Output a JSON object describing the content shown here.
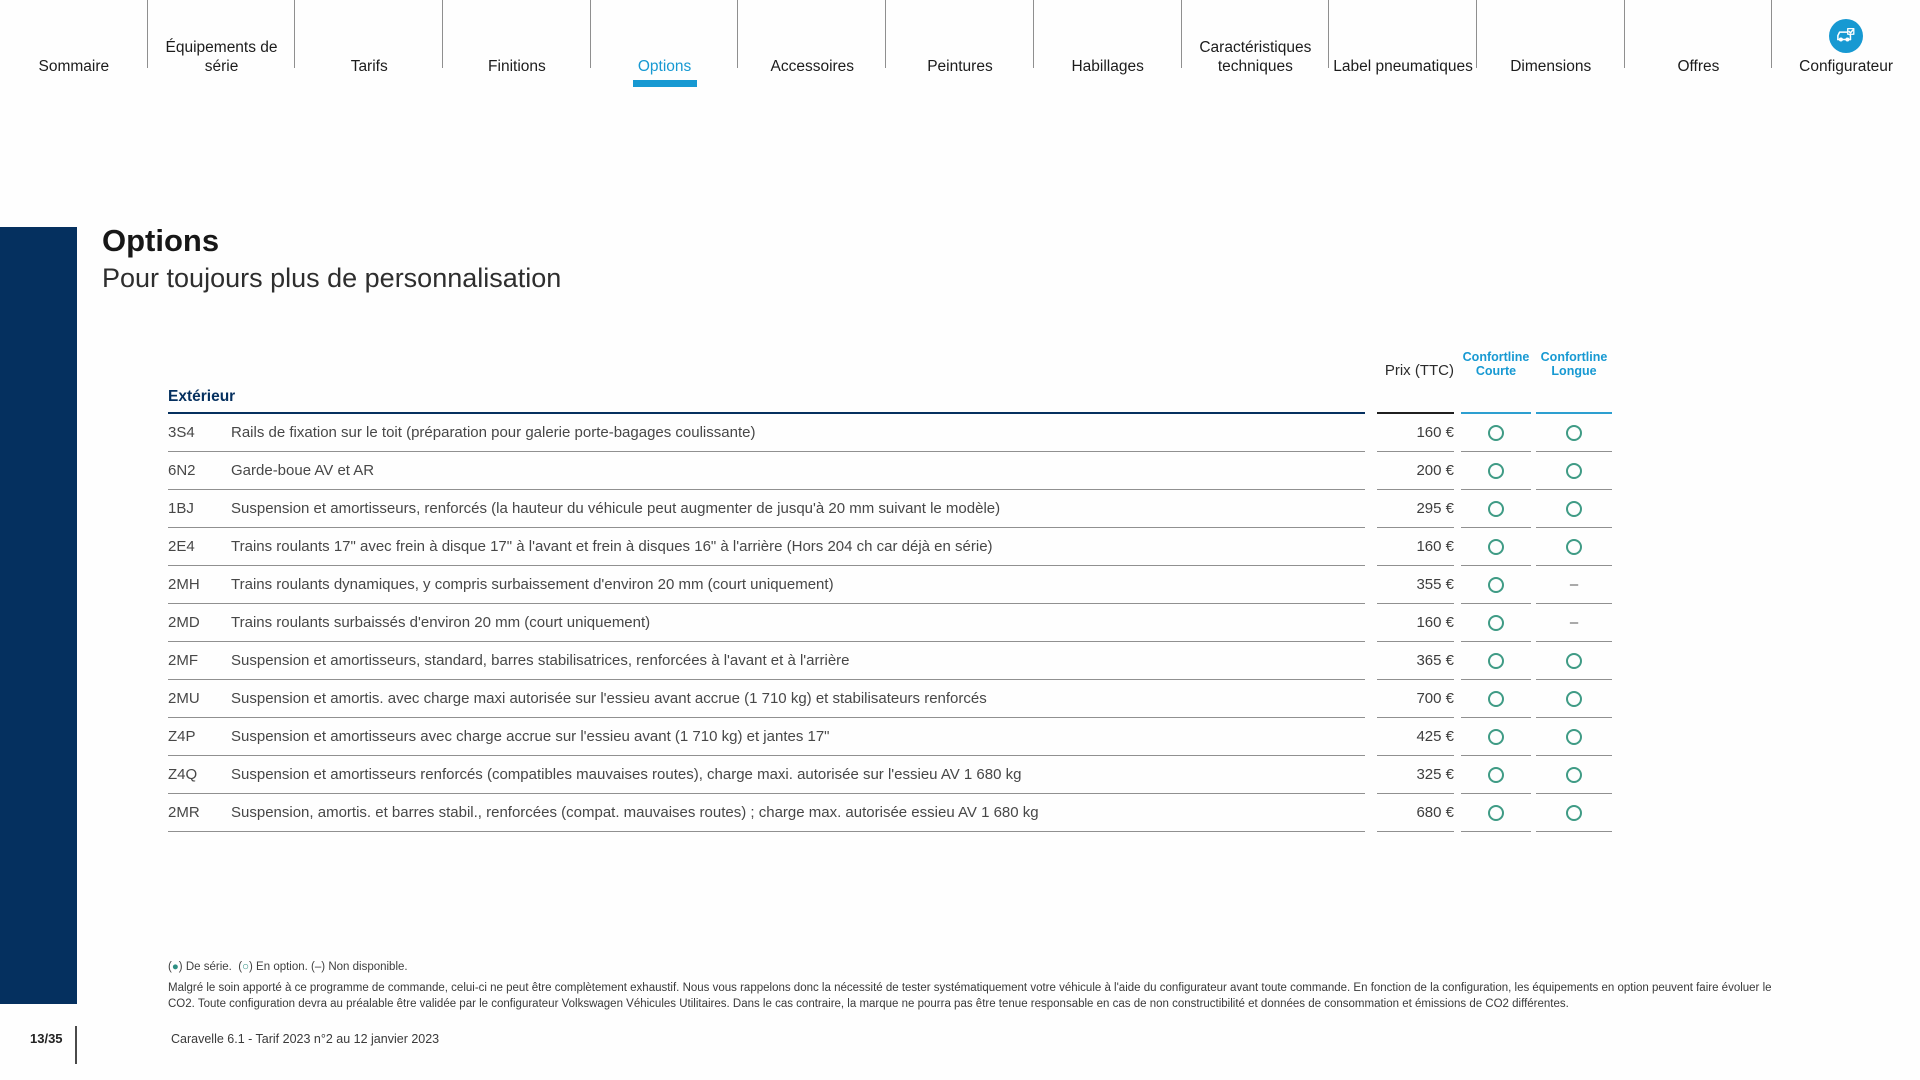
{
  "nav": {
    "active_index": 4,
    "tabs": [
      {
        "slug": "sommaire",
        "label": "Sommaire"
      },
      {
        "slug": "equipements-de-serie",
        "label": "Équipements de série"
      },
      {
        "slug": "tarifs",
        "label": "Tarifs"
      },
      {
        "slug": "finitions",
        "label": "Finitions"
      },
      {
        "slug": "options",
        "label": "Options"
      },
      {
        "slug": "accessoires",
        "label": "Accessoires"
      },
      {
        "slug": "peintures",
        "label": "Peintures"
      },
      {
        "slug": "habillages",
        "label": "Habillages"
      },
      {
        "slug": "caracteristiques-techniques",
        "label": "Caractéristiques techniques"
      },
      {
        "slug": "label-pneumatiques",
        "label": "Label pneumatiques"
      },
      {
        "slug": "dimensions",
        "label": "Dimensions"
      },
      {
        "slug": "offres",
        "label": "Offres"
      },
      {
        "slug": "configurateur",
        "label": "Configurateur",
        "has_icon": true,
        "icon": "configurator-car-icon"
      }
    ]
  },
  "page": {
    "title": "Options",
    "subtitle": "Pour toujours plus de personnalisation"
  },
  "table": {
    "section": "Extérieur",
    "price_header": "Prix (TTC)",
    "col_courte": {
      "line1": "Confortline",
      "line2": "Courte"
    },
    "col_longue": {
      "line1": "Confortline",
      "line2": "Longue"
    },
    "dash_symbol": "–",
    "rows": [
      {
        "code": "3S4",
        "desc": "Rails de fixation sur le toit (préparation pour galerie porte-bagages coulissante)",
        "price": "160 €",
        "courte": true,
        "longue": true
      },
      {
        "code": "6N2",
        "desc": "Garde-boue AV et AR",
        "price": "200 €",
        "courte": true,
        "longue": true
      },
      {
        "code": "1BJ",
        "desc": "Suspension et amortisseurs, renforcés (la hauteur du véhicule peut augmenter de jusqu'à 20 mm suivant le modèle)",
        "price": "295 €",
        "courte": true,
        "longue": true
      },
      {
        "code": "2E4",
        "desc": "Trains roulants 17\" avec frein à disque 17\" à l'avant et frein à disques 16\" à l'arrière (Hors 204 ch car déjà en série)",
        "price": "160 €",
        "courte": true,
        "longue": true
      },
      {
        "code": "2MH",
        "desc": "Trains roulants dynamiques, y compris surbaissement d'environ 20 mm (court uniquement)",
        "price": "355 €",
        "courte": true,
        "longue": false
      },
      {
        "code": "2MD",
        "desc": "Trains roulants surbaissés d'environ 20 mm (court uniquement)",
        "price": "160 €",
        "courte": true,
        "longue": false
      },
      {
        "code": "2MF",
        "desc": "Suspension et amortisseurs, standard, barres stabilisatrices, renforcées à l'avant et à l'arrière",
        "price": "365 €",
        "courte": true,
        "longue": true
      },
      {
        "code": "2MU",
        "desc": "Suspension et amortis. avec charge maxi autorisée sur l'essieu avant accrue (1 710 kg) et stabilisateurs renforcés",
        "price": "700 €",
        "courte": true,
        "longue": true
      },
      {
        "code": "Z4P",
        "desc": "Suspension et amortisseurs avec charge accrue sur l'essieu avant (1 710 kg) et jantes 17\"",
        "price": "425 €",
        "courte": true,
        "longue": true
      },
      {
        "code": "Z4Q",
        "desc": "Suspension et amortisseurs renforcés (compatibles mauvaises routes), charge maxi. autorisée sur l'essieu AV 1 680 kg",
        "price": "325 €",
        "courte": true,
        "longue": true
      },
      {
        "code": "2MR",
        "desc": "Suspension, amortis. et barres stabil., renforcées (compat. mauvaises routes) ; charge max. autorisée essieu AV 1 680 kg",
        "price": "680 €",
        "courte": true,
        "longue": true
      }
    ]
  },
  "legend": {
    "segments": [
      {
        "t": "(",
        "s": "plain"
      },
      {
        "t": "●",
        "s": "teal"
      },
      {
        "t": ") De série.  ",
        "s": "plain"
      },
      {
        "t": "(",
        "s": "plain"
      },
      {
        "t": "○",
        "s": "teal"
      },
      {
        "t": ") En option. ",
        "s": "plain"
      },
      {
        "t": "(",
        "s": "plain"
      },
      {
        "t": "–",
        "s": "plain"
      },
      {
        "t": ") Non disponible.",
        "s": "plain"
      }
    ]
  },
  "disclaimer": {
    "line1": "Malgré le soin apporté à ce programme de commande, celui-ci ne peut être complètement exhaustif. Nous vous rappelons donc la nécessité de tester systématiquement votre véhicule à l'aide du configurateur avant toute commande.  En fonction de la configuration, les équipements en option peuvent faire évoluer le",
    "line2": "CO2. Toute configuration devra au préalable être validée par le configurateur Volkswagen Véhicules Utilitaires. Dans le cas contraire, la marque ne pourra pas être tenue responsable en cas de non constructibilité et données de consommation et émissions de CO2 différentes."
  },
  "footer": {
    "page_number": "13/35",
    "document_title": "Caravelle 6.1 - Tarif 2023 n°2 au 12 janvier 2023"
  },
  "colors": {
    "accent_blue": "#1799d2",
    "navy": "#05305f",
    "circle_teal": "#3f9b85"
  }
}
